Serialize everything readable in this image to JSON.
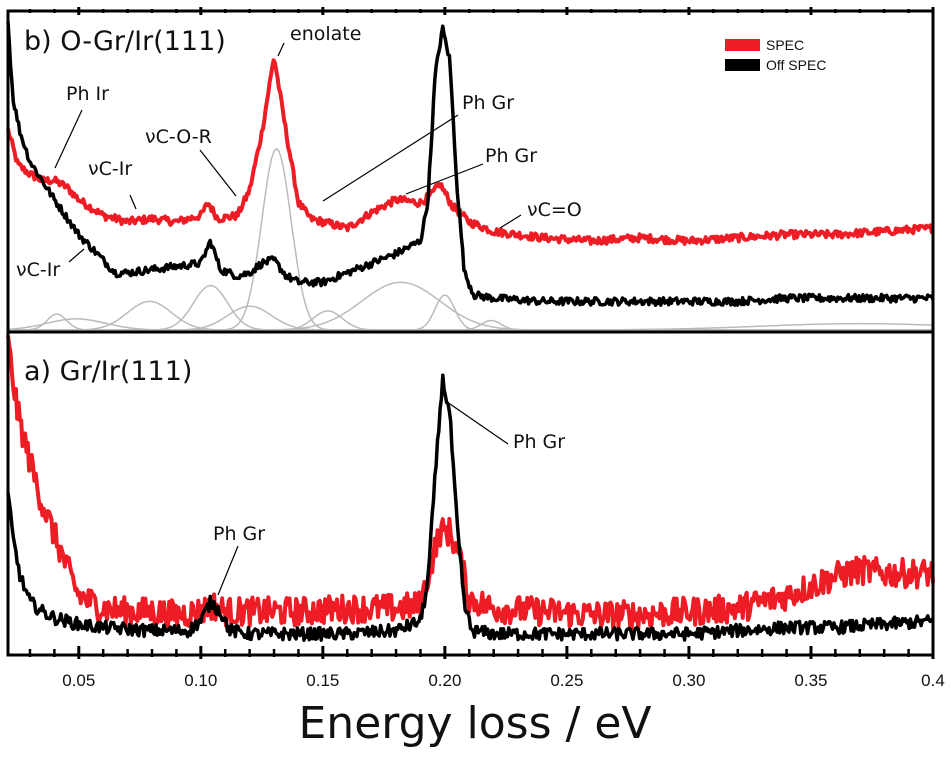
{
  "chart_data": [
    {
      "type": "line",
      "panel": "top",
      "title": "b) O-Gr/Ir(111)",
      "xlabel": "Energy loss / eV",
      "ylabel": "",
      "xlim": [
        0.021,
        0.4
      ],
      "ylim": [
        0,
        1
      ],
      "grid": false,
      "legend": {
        "placement": "top-right",
        "entries": [
          {
            "name": "SPEC",
            "color": "#ee1c25"
          },
          {
            "name": "Off SPEC",
            "color": "#000000"
          }
        ]
      },
      "series": [
        {
          "name": "SPEC",
          "color": "#ee1c25",
          "noise": 0.012,
          "x": [
            0.021,
            0.025,
            0.03,
            0.035,
            0.04,
            0.045,
            0.05,
            0.06,
            0.07,
            0.08,
            0.09,
            0.1,
            0.103,
            0.107,
            0.115,
            0.12,
            0.125,
            0.13,
            0.135,
            0.14,
            0.145,
            0.15,
            0.16,
            0.17,
            0.18,
            0.19,
            0.195,
            0.198,
            0.203,
            0.21,
            0.22,
            0.24,
            0.26,
            0.28,
            0.3,
            0.32,
            0.34,
            0.36,
            0.38,
            0.4
          ],
          "y": [
            0.63,
            0.52,
            0.49,
            0.47,
            0.47,
            0.45,
            0.41,
            0.36,
            0.34,
            0.35,
            0.34,
            0.36,
            0.4,
            0.35,
            0.36,
            0.44,
            0.62,
            0.86,
            0.62,
            0.4,
            0.35,
            0.34,
            0.32,
            0.37,
            0.41,
            0.4,
            0.43,
            0.46,
            0.39,
            0.34,
            0.31,
            0.29,
            0.28,
            0.29,
            0.28,
            0.29,
            0.3,
            0.3,
            0.31,
            0.32
          ]
        },
        {
          "name": "Off SPEC",
          "color": "#000000",
          "noise": 0.012,
          "x": [
            0.021,
            0.023,
            0.026,
            0.03,
            0.04,
            0.05,
            0.06,
            0.065,
            0.07,
            0.08,
            0.09,
            0.1,
            0.104,
            0.108,
            0.115,
            0.12,
            0.125,
            0.13,
            0.135,
            0.14,
            0.15,
            0.16,
            0.17,
            0.18,
            0.19,
            0.193,
            0.196,
            0.199,
            0.202,
            0.205,
            0.208,
            0.212,
            0.22,
            0.24,
            0.26,
            0.28,
            0.3,
            0.32,
            0.34,
            0.36,
            0.38,
            0.4
          ],
          "y": [
            0.97,
            0.73,
            0.62,
            0.53,
            0.41,
            0.3,
            0.22,
            0.18,
            0.18,
            0.19,
            0.2,
            0.21,
            0.28,
            0.19,
            0.17,
            0.18,
            0.21,
            0.22,
            0.17,
            0.15,
            0.15,
            0.18,
            0.21,
            0.24,
            0.28,
            0.4,
            0.8,
            0.95,
            0.85,
            0.45,
            0.18,
            0.11,
            0.1,
            0.09,
            0.09,
            0.09,
            0.09,
            0.09,
            0.1,
            0.1,
            0.1,
            0.1
          ]
        }
      ],
      "fit_components": {
        "color": "#b8bcbb",
        "peaks": [
          {
            "center": 0.041,
            "height": 0.05,
            "width": 0.004
          },
          {
            "center": 0.049,
            "height": 0.035,
            "width": 0.012
          },
          {
            "center": 0.079,
            "height": 0.09,
            "width": 0.009
          },
          {
            "center": 0.104,
            "height": 0.14,
            "width": 0.007
          },
          {
            "center": 0.12,
            "height": 0.075,
            "width": 0.009
          },
          {
            "center": 0.131,
            "height": 0.57,
            "width": 0.006
          },
          {
            "center": 0.152,
            "height": 0.06,
            "width": 0.006
          },
          {
            "center": 0.182,
            "height": 0.15,
            "width": 0.016
          },
          {
            "center": 0.2,
            "height": 0.11,
            "width": 0.004
          },
          {
            "center": 0.219,
            "height": 0.03,
            "width": 0.004
          },
          {
            "center": 0.37,
            "height": 0.02,
            "width": 0.04
          }
        ]
      },
      "annotations": [
        {
          "text": "enolate",
          "x": 0.131,
          "y": 0.86
        },
        {
          "text": "Ph Ir",
          "x": 0.039,
          "y": 0.48
        },
        {
          "text": "νC-Ir",
          "x": 0.073,
          "y": 0.36
        },
        {
          "text": "νC-O-R",
          "x": 0.114,
          "y": 0.37
        },
        {
          "text": "Ph Gr",
          "x": 0.153,
          "y": 0.35
        },
        {
          "text": "Ph Gr",
          "x": 0.176,
          "y": 0.4
        },
        {
          "text": "νC=O",
          "x": 0.219,
          "y": 0.32
        },
        {
          "text": "νC-Ir",
          "x": 0.047,
          "y": 0.28
        }
      ]
    },
    {
      "type": "line",
      "panel": "bottom",
      "title": "a) Gr/Ir(111)",
      "xlabel": "Energy loss / eV",
      "ylabel": "",
      "xlim": [
        0.021,
        0.4
      ],
      "ylim": [
        0,
        1
      ],
      "grid": false,
      "series": [
        {
          "name": "SPEC",
          "color": "#ee1c25",
          "noise": 0.045,
          "x": [
            0.021,
            0.025,
            0.03,
            0.035,
            0.04,
            0.045,
            0.05,
            0.06,
            0.07,
            0.08,
            0.09,
            0.1,
            0.105,
            0.11,
            0.12,
            0.14,
            0.16,
            0.18,
            0.19,
            0.195,
            0.198,
            0.202,
            0.206,
            0.21,
            0.22,
            0.24,
            0.26,
            0.28,
            0.3,
            0.32,
            0.34,
            0.36,
            0.37,
            0.38,
            0.4
          ],
          "y": [
            0.97,
            0.75,
            0.6,
            0.47,
            0.37,
            0.27,
            0.18,
            0.14,
            0.13,
            0.13,
            0.12,
            0.13,
            0.15,
            0.13,
            0.13,
            0.13,
            0.14,
            0.14,
            0.15,
            0.3,
            0.38,
            0.38,
            0.3,
            0.17,
            0.14,
            0.13,
            0.12,
            0.12,
            0.13,
            0.14,
            0.18,
            0.24,
            0.26,
            0.25,
            0.25
          ]
        },
        {
          "name": "Off SPEC",
          "color": "#000000",
          "noise": 0.02,
          "x": [
            0.021,
            0.023,
            0.026,
            0.03,
            0.035,
            0.04,
            0.05,
            0.06,
            0.08,
            0.095,
            0.1,
            0.104,
            0.108,
            0.112,
            0.12,
            0.14,
            0.16,
            0.18,
            0.19,
            0.193,
            0.196,
            0.199,
            0.202,
            0.205,
            0.208,
            0.211,
            0.22,
            0.24,
            0.26,
            0.28,
            0.3,
            0.32,
            0.34,
            0.36,
            0.38,
            0.4
          ],
          "y": [
            0.5,
            0.36,
            0.24,
            0.16,
            0.13,
            0.11,
            0.09,
            0.08,
            0.07,
            0.07,
            0.1,
            0.16,
            0.13,
            0.07,
            0.06,
            0.06,
            0.06,
            0.07,
            0.1,
            0.22,
            0.55,
            0.86,
            0.75,
            0.4,
            0.15,
            0.07,
            0.06,
            0.06,
            0.06,
            0.06,
            0.06,
            0.07,
            0.08,
            0.08,
            0.09,
            0.1
          ]
        }
      ],
      "annotations": [
        {
          "text": "Ph Gr",
          "x": 0.105,
          "y": 0.16
        },
        {
          "text": "Ph Gr",
          "x": 0.199,
          "y": 0.86
        }
      ]
    }
  ],
  "axis": {
    "tick_labels": [
      "0.05",
      "0.10",
      "0.15",
      "0.20",
      "0.25",
      "0.30",
      "0.35",
      "0.4"
    ],
    "tick_values": [
      0.05,
      0.1,
      0.15,
      0.2,
      0.25,
      0.3,
      0.35,
      0.4
    ],
    "minor_step": 0.01,
    "xlabel": "Energy loss / eV"
  },
  "labels": {
    "top_title": "b) O-Gr/Ir(111)",
    "bottom_title": "a) Gr/Ir(111)",
    "legend_spec": "SPEC",
    "legend_off": "Off SPEC",
    "enolate": "enolate",
    "ph_ir": "Ph Ir",
    "vc_ir_red": "νC-Ir",
    "vc_o_r": "νC-O-R",
    "ph_gr_1": "Ph Gr",
    "ph_gr_2": "Ph Gr",
    "vc_o": "νC=O",
    "vc_ir_black": "νC-Ir",
    "ph_gr_bottom_small": "Ph Gr",
    "ph_gr_bottom_big": "Ph Gr"
  }
}
